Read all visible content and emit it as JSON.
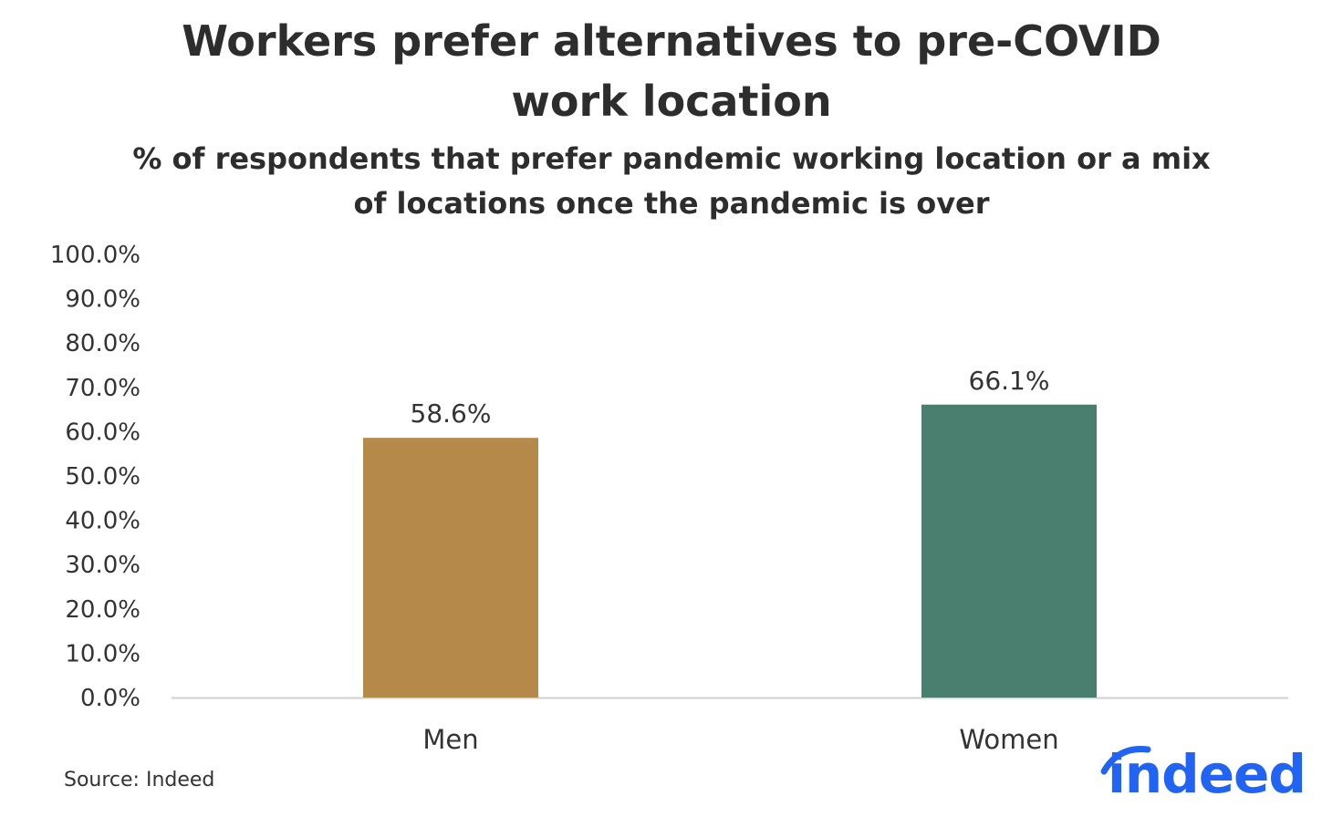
{
  "title_lines": [
    "Workers prefer alternatives to pre-COVID",
    "work location"
  ],
  "subtitle_lines": [
    "% of respondents that prefer pandemic working location or a mix",
    "of locations once the pandemic is over"
  ],
  "source": "Source: Indeed",
  "logo_text": "indeed",
  "colors": {
    "men": "#b5894a",
    "women": "#4a7f70",
    "axis": "#d0d0d0",
    "logo": "#2164f3"
  },
  "chart_data": {
    "type": "bar",
    "title": "Workers prefer alternatives to pre-COVID work location",
    "subtitle": "% of respondents that prefer pandemic working location or a mix of locations once the pandemic is over",
    "categories": [
      "Men",
      "Women"
    ],
    "values": [
      58.6,
      66.1
    ],
    "data_labels": [
      "58.6%",
      "66.1%"
    ],
    "bar_colors": [
      "#b5894a",
      "#4a7f70"
    ],
    "ylim": [
      0,
      100
    ],
    "y_ticks": [
      0,
      10,
      20,
      30,
      40,
      50,
      60,
      70,
      80,
      90,
      100
    ],
    "y_tick_labels": [
      "0.0%",
      "10.0%",
      "20.0%",
      "30.0%",
      "40.0%",
      "50.0%",
      "60.0%",
      "70.0%",
      "80.0%",
      "90.0%",
      "100.0%"
    ],
    "xlabel": "",
    "ylabel": "",
    "grid": false,
    "legend": "none"
  }
}
